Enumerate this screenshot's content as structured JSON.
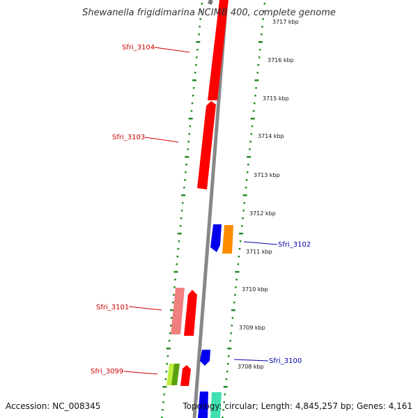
{
  "title": "Shewanella frigidimarina NCIMB 400, complete genome",
  "accession": "Accession: NC_008345",
  "topology": "Topology: circular; Length: 4,845,257 bp; Genes: 4,161",
  "colors": {
    "forward_gene": "#ff0000",
    "forward_gene_light": "#f08080",
    "reverse_gene": "#0000ff",
    "orange_gene": "#ff8c00",
    "teal_gene": "#40e0b0",
    "green_gene": "#7fcf1f",
    "tick": "#228822",
    "backbone": "#888888",
    "label_forward": "#cc0000",
    "label_reverse": "#0000aa"
  },
  "kbp_labels": [
    {
      "text": "3717 kbp"
    },
    {
      "text": "3716 kbp"
    },
    {
      "text": "3715 kbp"
    },
    {
      "text": "3714 kbp"
    },
    {
      "text": "3713 kbp"
    },
    {
      "text": "3712 kbp"
    },
    {
      "text": "3711 kbp"
    },
    {
      "text": "3710 kbp"
    },
    {
      "text": "3709 kbp"
    },
    {
      "text": "3708 kbp"
    }
  ],
  "gene_labels": [
    {
      "text": "Sfri_3104",
      "strand": "forward"
    },
    {
      "text": "Sfri_3103",
      "strand": "forward"
    },
    {
      "text": "Sfri_3102",
      "strand": "reverse"
    },
    {
      "text": "Sfri_3101",
      "strand": "forward"
    },
    {
      "text": "Sfri_3100",
      "strand": "reverse"
    },
    {
      "text": "Sfri_3099",
      "strand": "forward"
    }
  ]
}
